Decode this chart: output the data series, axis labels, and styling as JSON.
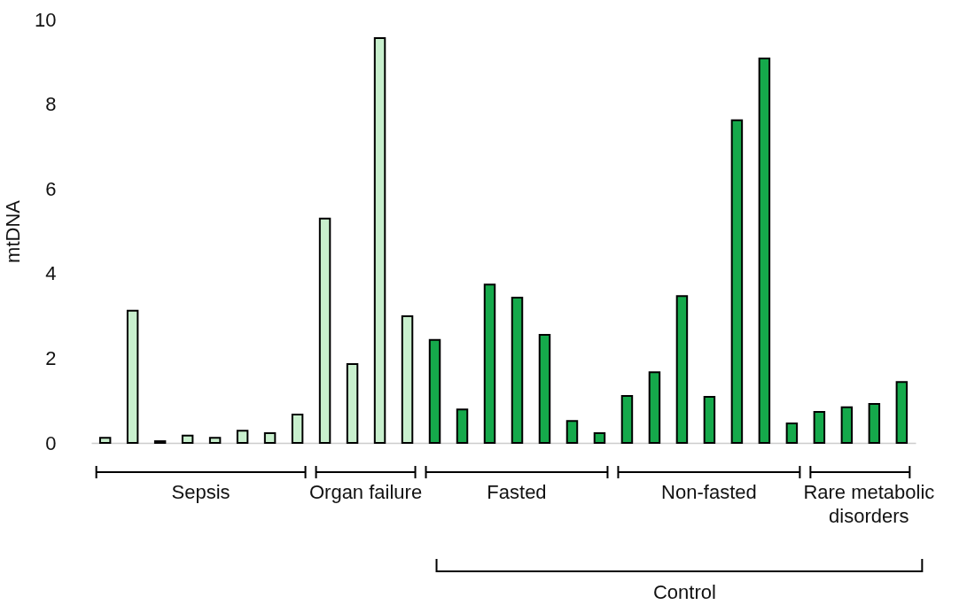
{
  "chart_data": {
    "type": "bar",
    "ylabel": "mtDNA",
    "categories": [
      null,
      null,
      null,
      null,
      null,
      null,
      null,
      null,
      null,
      null,
      null,
      null,
      null,
      null,
      null,
      null,
      null,
      null,
      null,
      null,
      null,
      null,
      null,
      null,
      null,
      null,
      null,
      null,
      null,
      null
    ],
    "values": [
      0.12,
      3.12,
      0.04,
      0.17,
      0.12,
      0.29,
      0.23,
      0.67,
      5.3,
      1.86,
      9.56,
      2.99,
      2.43,
      0.79,
      3.74,
      3.43,
      2.55,
      0.52,
      0.23,
      1.11,
      1.67,
      3.47,
      1.09,
      7.62,
      9.08,
      0.46,
      0.73,
      0.84,
      0.92,
      1.44
    ],
    "colors": [
      "#c8efcd",
      "#c8efcd",
      "#c8efcd",
      "#c8efcd",
      "#c8efcd",
      "#c8efcd",
      "#c8efcd",
      "#c8efcd",
      "#c8efcd",
      "#c8efcd",
      "#c8efcd",
      "#c8efcd",
      "#15a94b",
      "#15a94b",
      "#15a94b",
      "#15a94b",
      "#15a94b",
      "#15a94b",
      "#15a94b",
      "#15a94b",
      "#15a94b",
      "#15a94b",
      "#15a94b",
      "#15a94b",
      "#15a94b",
      "#15a94b",
      "#15a94b",
      "#15a94b",
      "#15a94b",
      "#15a94b"
    ],
    "ylim": [
      0,
      10
    ],
    "yticks": [
      0,
      2,
      4,
      6,
      8,
      10
    ],
    "annotations": [
      "Sepsis",
      "Organ failure",
      "Fasted",
      "Non-fasted",
      "Rare metabolic disorders",
      "Control"
    ]
  }
}
